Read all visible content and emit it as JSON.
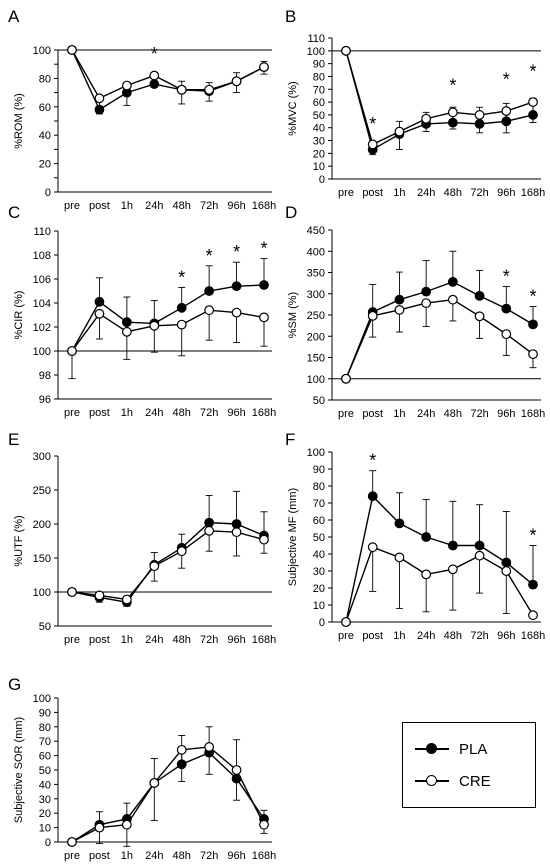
{
  "categories": [
    "pre",
    "post",
    "1h",
    "24h",
    "48h",
    "72h",
    "96h",
    "168h"
  ],
  "legend": [
    {
      "name": "PLA",
      "marker": "filled"
    },
    {
      "name": "CRE",
      "marker": "open"
    }
  ],
  "chart_data": [
    {
      "panel_label": "A",
      "type": "line",
      "ylabel": "%ROM (%)",
      "ylim": [
        0,
        100
      ],
      "yticks": [
        0,
        10,
        20,
        30,
        40,
        50,
        60,
        70,
        80,
        90,
        100
      ],
      "ytick_labels": [
        "0",
        "",
        "20",
        "",
        "40",
        "",
        "60",
        "",
        "80",
        "",
        "100"
      ],
      "categories": [
        "pre",
        "post",
        "1h",
        "24h",
        "48h",
        "72h",
        "96h",
        "168h"
      ],
      "series": [
        {
          "name": "PLA",
          "values": [
            100,
            58,
            70,
            76,
            72,
            71,
            78,
            88
          ],
          "err": [
            0,
            9,
            6,
            7,
            6,
            6,
            6,
            4
          ]
        },
        {
          "name": "CRE",
          "values": [
            100,
            66,
            75,
            82,
            72,
            72,
            78,
            88
          ],
          "err": [
            0,
            11,
            14,
            8,
            10,
            8,
            8,
            5
          ]
        }
      ],
      "annotations": [
        "*"
      ],
      "annotation_index": [
        3
      ]
    },
    {
      "panel_label": "B",
      "type": "line",
      "ylabel": "%MVC (%)",
      "ylim": [
        0,
        110
      ],
      "yticks": [
        0,
        10,
        20,
        30,
        40,
        50,
        60,
        70,
        80,
        90,
        100,
        110
      ],
      "ytick_labels": [
        "0",
        "10",
        "20",
        "30",
        "40",
        "50",
        "60",
        "70",
        "80",
        "90",
        "100",
        "110"
      ],
      "categories": [
        "pre",
        "post",
        "1h",
        "24h",
        "48h",
        "72h",
        "96h",
        "168h"
      ],
      "series": [
        {
          "name": "PLA",
          "values": [
            100,
            23,
            35,
            43,
            44,
            43,
            45,
            50
          ],
          "err": [
            0,
            6,
            10,
            9,
            12,
            13,
            14,
            13
          ]
        },
        {
          "name": "CRE",
          "values": [
            100,
            27,
            37,
            47,
            52,
            50,
            53,
            60
          ],
          "err": [
            0,
            8,
            14,
            10,
            13,
            14,
            17,
            16
          ]
        }
      ],
      "annotations": [
        "*",
        "*",
        "*",
        "*"
      ],
      "annotation_index": [
        1,
        4,
        6,
        7
      ]
    },
    {
      "panel_label": "C",
      "type": "line",
      "ylabel": "%CIR (%)",
      "ylim": [
        96,
        110
      ],
      "yticks": [
        96,
        98,
        100,
        102,
        104,
        106,
        108,
        110
      ],
      "ytick_labels": [
        "96",
        "98",
        "100",
        "102",
        "104",
        "106",
        "108",
        "110"
      ],
      "categories": [
        "pre",
        "post",
        "1h",
        "24h",
        "48h",
        "72h",
        "96h",
        "168h"
      ],
      "series": [
        {
          "name": "PLA",
          "values": [
            100,
            104.1,
            102.4,
            102.3,
            103.6,
            105.0,
            105.4,
            105.5
          ],
          "err": [
            0,
            2.0,
            2.1,
            1.9,
            1.7,
            2.1,
            2.0,
            2.2
          ]
        },
        {
          "name": "CRE",
          "values": [
            100,
            103.1,
            101.6,
            102.1,
            102.2,
            103.4,
            103.2,
            102.8
          ],
          "err": [
            2.3,
            2.1,
            2.3,
            2.2,
            2.6,
            2.5,
            2.5,
            2.4
          ]
        }
      ],
      "annotations": [
        "*",
        "*",
        "*",
        "*"
      ],
      "annotation_index": [
        4,
        5,
        6,
        7
      ]
    },
    {
      "panel_label": "D",
      "type": "line",
      "ylabel": "%SM (%)",
      "ylim": [
        50,
        450
      ],
      "yticks": [
        50,
        100,
        150,
        200,
        250,
        300,
        350,
        400,
        450
      ],
      "ytick_labels": [
        "50",
        "100",
        "150",
        "200",
        "250",
        "300",
        "350",
        "400",
        "450"
      ],
      "categories": [
        "pre",
        "post",
        "1h",
        "24h",
        "48h",
        "72h",
        "96h",
        "168h"
      ],
      "series": [
        {
          "name": "PLA",
          "values": [
            100,
            257,
            286,
            305,
            328,
            295,
            265,
            228
          ],
          "err": [
            0,
            65,
            65,
            73,
            72,
            60,
            52,
            42
          ]
        },
        {
          "name": "CRE",
          "values": [
            100,
            248,
            262,
            278,
            286,
            247,
            205,
            158
          ],
          "err": [
            0,
            50,
            52,
            55,
            50,
            52,
            50,
            32
          ]
        }
      ],
      "annotations": [
        "*",
        "*"
      ],
      "annotation_index": [
        6,
        7
      ]
    },
    {
      "panel_label": "E",
      "type": "line",
      "ylabel": "%UTF (%)",
      "ylim": [
        50,
        300
      ],
      "yticks": [
        50,
        100,
        150,
        200,
        250,
        300
      ],
      "ytick_labels": [
        "50",
        "100",
        "150",
        "200",
        "250",
        "300"
      ],
      "categories": [
        "pre",
        "post",
        "1h",
        "24h",
        "48h",
        "72h",
        "96h",
        "168h"
      ],
      "series": [
        {
          "name": "PLA",
          "values": [
            100,
            92,
            85,
            140,
            165,
            202,
            200,
            183
          ],
          "err": [
            0,
            8,
            6,
            18,
            20,
            40,
            48,
            35
          ]
        },
        {
          "name": "CRE",
          "values": [
            100,
            95,
            89,
            138,
            160,
            190,
            188,
            177
          ],
          "err": [
            0,
            10,
            10,
            22,
            25,
            30,
            35,
            20
          ]
        }
      ],
      "annotations": [],
      "annotation_index": []
    },
    {
      "panel_label": "F",
      "type": "line",
      "ylabel": "Subjective MF (mm)",
      "ylim": [
        0,
        100
      ],
      "yticks": [
        0,
        10,
        20,
        30,
        40,
        50,
        60,
        70,
        80,
        90,
        100
      ],
      "ytick_labels": [
        "0",
        "10",
        "20",
        "30",
        "40",
        "50",
        "60",
        "70",
        "80",
        "90",
        "100"
      ],
      "categories": [
        "pre",
        "post",
        "1h",
        "24h",
        "48h",
        "72h",
        "96h",
        "168h"
      ],
      "series": [
        {
          "name": "PLA",
          "values": [
            0,
            74,
            58,
            50,
            45,
            45,
            35,
            22
          ],
          "err": [
            0,
            15,
            18,
            22,
            26,
            24,
            30,
            23
          ]
        },
        {
          "name": "CRE",
          "values": [
            0,
            44,
            38,
            28,
            31,
            39,
            30,
            4
          ],
          "err": [
            0,
            26,
            30,
            22,
            24,
            22,
            25,
            0
          ]
        }
      ],
      "annotations": [
        "*",
        "*"
      ],
      "annotation_index": [
        1,
        7
      ]
    },
    {
      "panel_label": "G",
      "type": "line",
      "ylabel": "Subjective SOR (mm)",
      "ylim": [
        0,
        100
      ],
      "yticks": [
        0,
        10,
        20,
        30,
        40,
        50,
        60,
        70,
        80,
        90,
        100
      ],
      "ytick_labels": [
        "0",
        "10",
        "20",
        "30",
        "40",
        "50",
        "60",
        "70",
        "80",
        "90",
        "100"
      ],
      "categories": [
        "pre",
        "post",
        "1h",
        "24h",
        "48h",
        "72h",
        "96h",
        "168h"
      ],
      "series": [
        {
          "name": "PLA",
          "values": [
            0,
            12,
            16,
            41,
            54,
            62,
            44,
            16
          ],
          "err": [
            0,
            9,
            11,
            17,
            20,
            18,
            27,
            6
          ]
        },
        {
          "name": "CRE",
          "values": [
            0,
            10,
            12,
            41,
            64,
            66,
            50,
            12
          ],
          "err": [
            0,
            11,
            15,
            26,
            22,
            19,
            21,
            6
          ]
        }
      ],
      "annotations": [],
      "annotation_index": []
    }
  ]
}
